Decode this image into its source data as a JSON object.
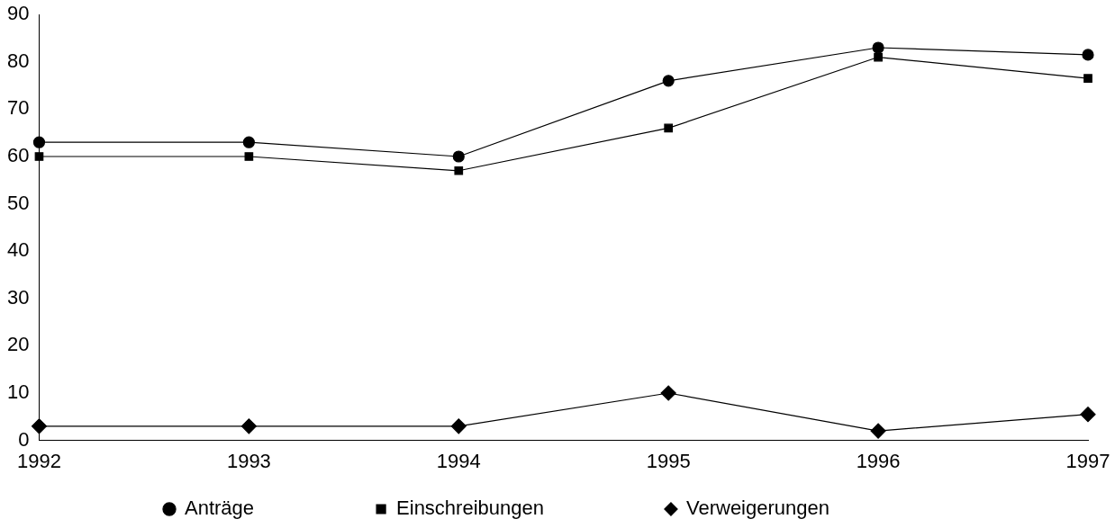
{
  "chart_data": {
    "type": "line",
    "categories": [
      "1992",
      "1993",
      "1994",
      "1995",
      "1996",
      "1997"
    ],
    "series": [
      {
        "name": "Anträge",
        "color": "#000000",
        "marker": "circle",
        "values": [
          63,
          63,
          60,
          76,
          83,
          81.5
        ]
      },
      {
        "name": "Einschreibungen",
        "color": "#000000",
        "marker": "square",
        "values": [
          60,
          60,
          57,
          66,
          81,
          76.5
        ]
      },
      {
        "name": "Verweigerungen",
        "color": "#000000",
        "marker": "diamond",
        "values": [
          3,
          3,
          3,
          10,
          2,
          5.5
        ]
      }
    ],
    "ylim": [
      0,
      90
    ],
    "yticks": [
      0,
      10,
      20,
      30,
      40,
      50,
      60,
      70,
      80,
      90
    ],
    "grid": false,
    "legend": "bottom"
  }
}
